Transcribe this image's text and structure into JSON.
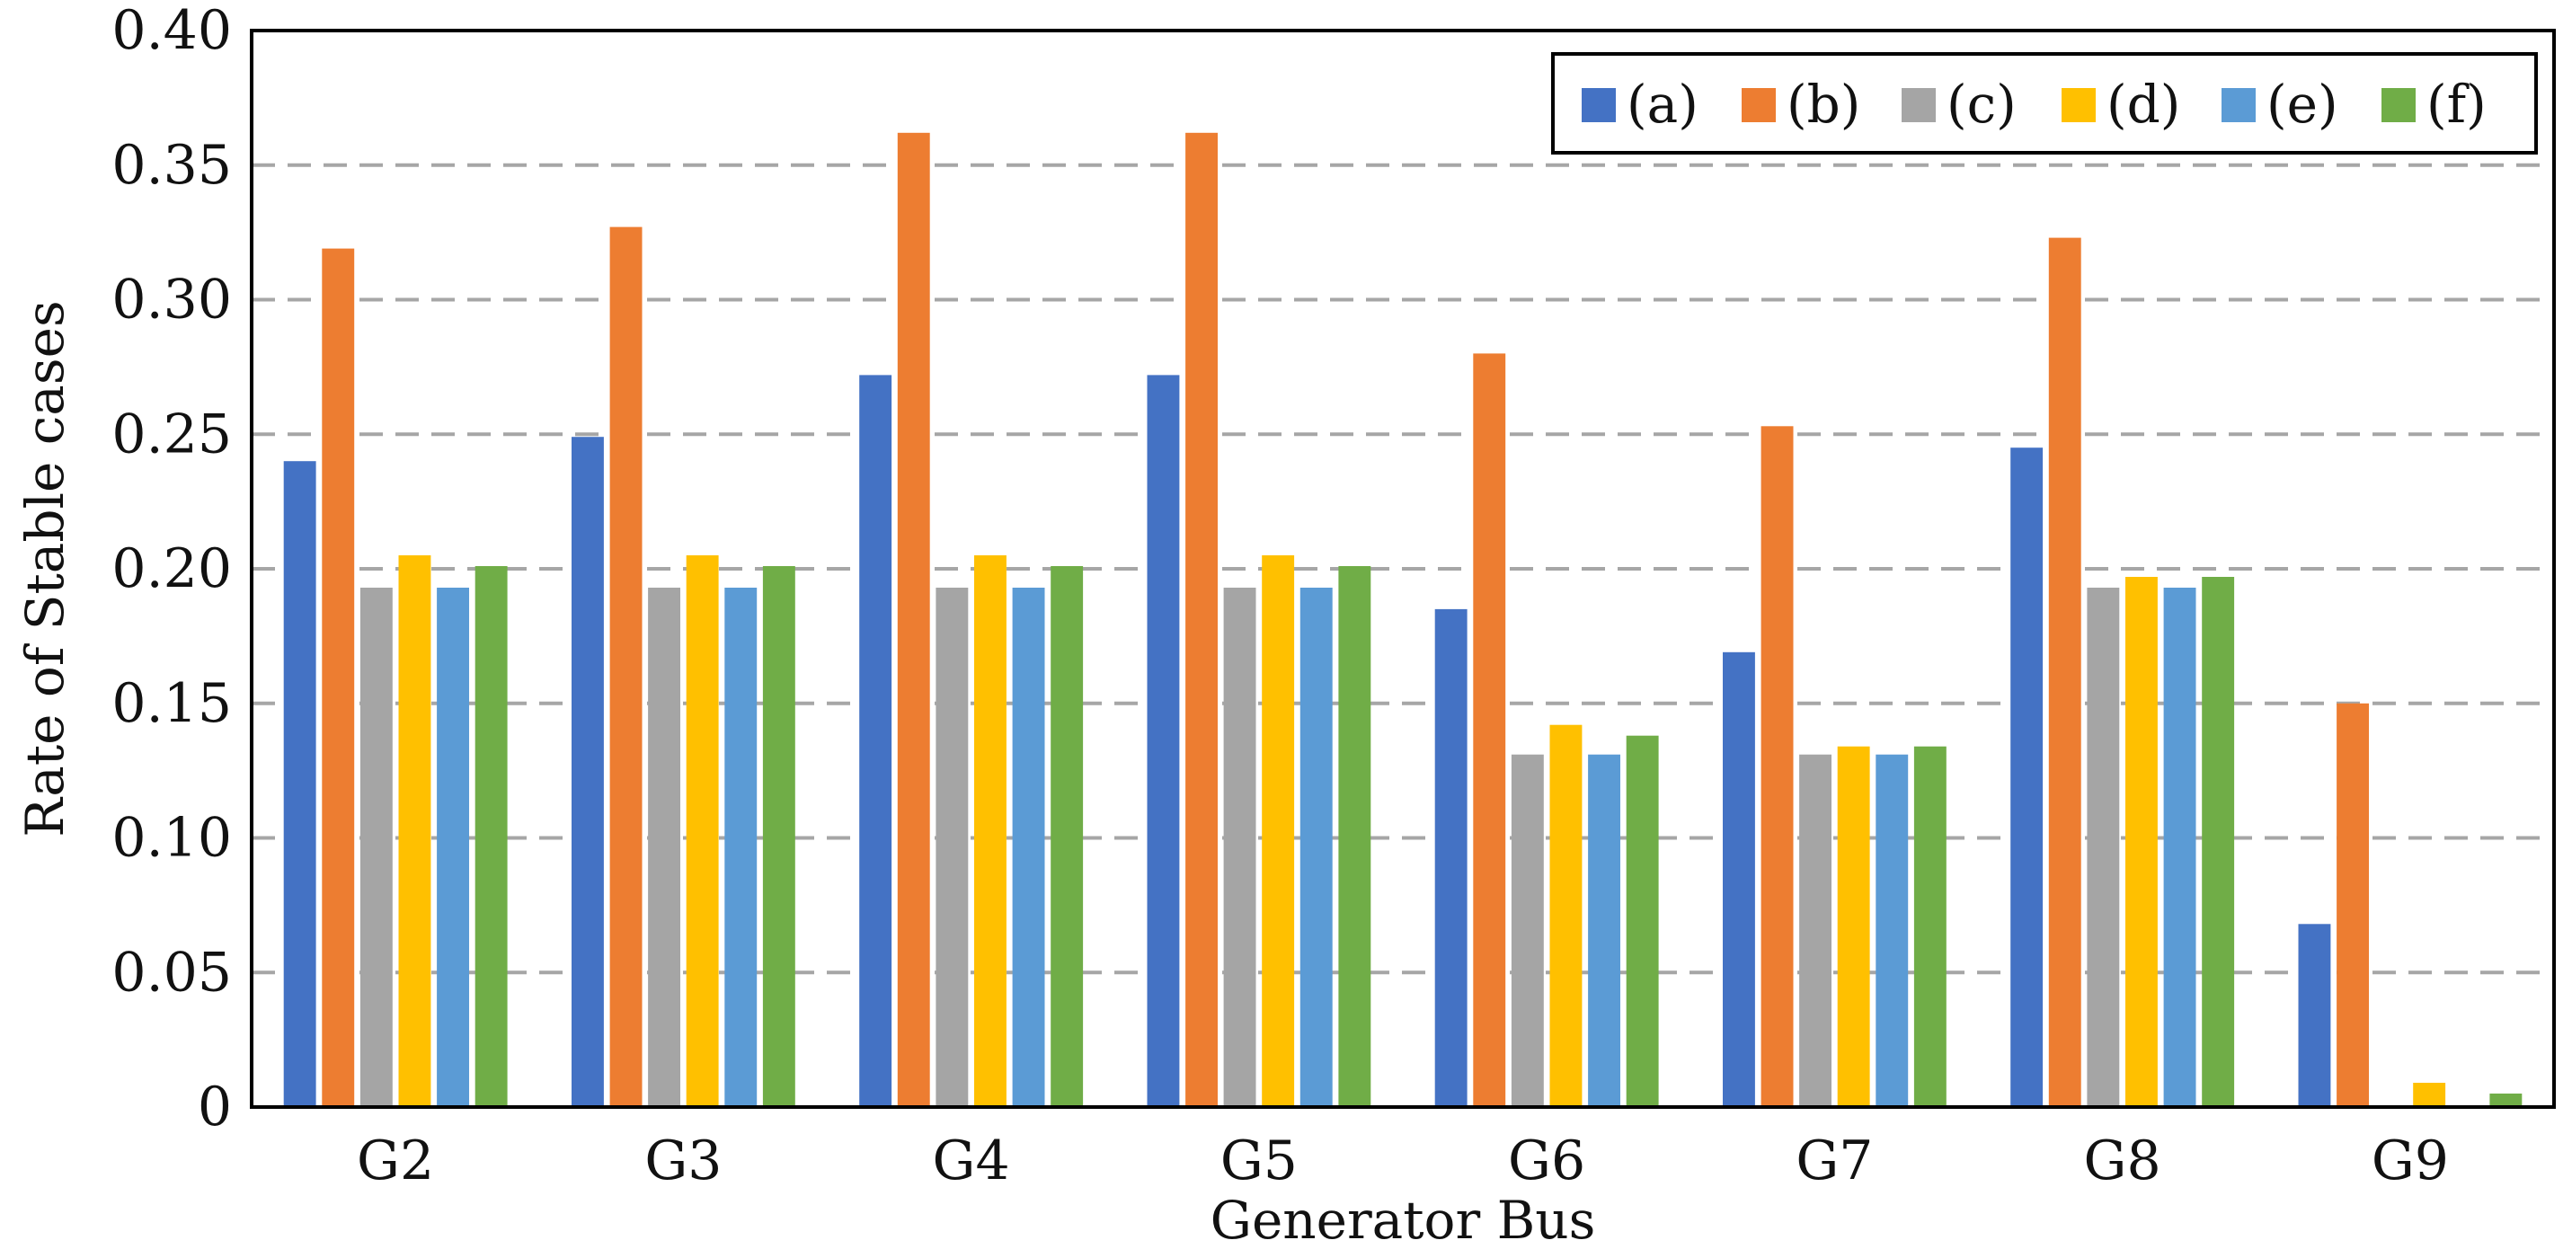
{
  "chart_data": {
    "type": "bar",
    "title": "",
    "xlabel": "Generator Bus",
    "ylabel": "Rate of Stable cases",
    "ylim": [
      0,
      0.4
    ],
    "yticks": [
      0,
      0.05,
      0.1,
      0.15,
      0.2,
      0.25,
      0.3,
      0.35,
      0.4
    ],
    "ytick_labels": [
      "0",
      "0.05",
      "0.10",
      "0.15",
      "0.20",
      "0.25",
      "0.30",
      "0.35",
      "0.40"
    ],
    "grid": "horizontal-dashed",
    "legend_position": "top-right",
    "categories": [
      "G2",
      "G3",
      "G4",
      "G5",
      "G6",
      "G7",
      "G8",
      "G9"
    ],
    "series": [
      {
        "name": "(a)",
        "color": "#4472c4",
        "values": [
          0.24,
          0.249,
          0.272,
          0.272,
          0.185,
          0.169,
          0.245,
          0.068
        ]
      },
      {
        "name": "(b)",
        "color": "#ed7d31",
        "values": [
          0.319,
          0.327,
          0.362,
          0.362,
          0.28,
          0.253,
          0.323,
          0.15
        ]
      },
      {
        "name": "(c)",
        "color": "#a5a5a5",
        "values": [
          0.193,
          0.193,
          0.193,
          0.193,
          0.131,
          0.131,
          0.193,
          0.0
        ]
      },
      {
        "name": "(d)",
        "color": "#ffc000",
        "values": [
          0.205,
          0.205,
          0.205,
          0.205,
          0.142,
          0.134,
          0.197,
          0.009
        ]
      },
      {
        "name": "(e)",
        "color": "#5b9bd5",
        "values": [
          0.193,
          0.193,
          0.193,
          0.193,
          0.131,
          0.131,
          0.193,
          0.0
        ]
      },
      {
        "name": "(f)",
        "color": "#70ad47",
        "values": [
          0.201,
          0.201,
          0.201,
          0.201,
          0.138,
          0.134,
          0.197,
          0.005
        ]
      }
    ]
  }
}
